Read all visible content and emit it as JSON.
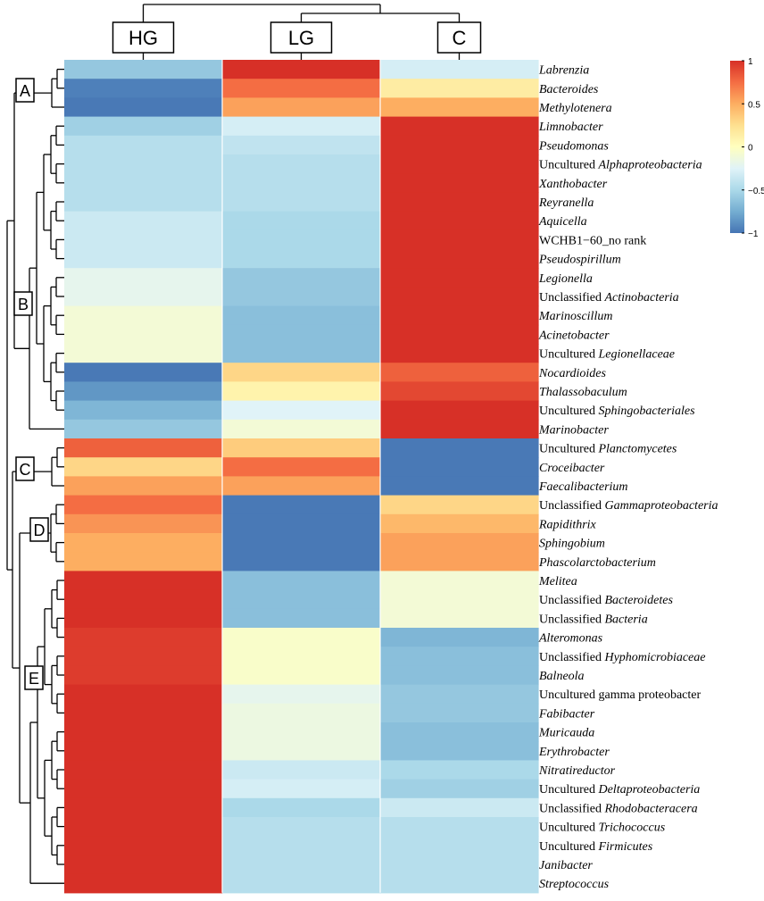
{
  "chart_data": {
    "type": "heatmap",
    "title": "",
    "columns": [
      "HG",
      "LG",
      "C"
    ],
    "color_scale": {
      "min": -1,
      "max": 1,
      "ticks": [
        1,
        0.5,
        0,
        -0.5,
        -1
      ],
      "tick_labels": [
        "1",
        "0.5",
        "0",
        "−0.5",
        "−1"
      ],
      "stops": [
        "#4575b4",
        "#74add1",
        "#abd9e9",
        "#e0f3f8",
        "#ffffbf",
        "#fee090",
        "#fdae61",
        "#f46d43",
        "#d73027"
      ]
    },
    "clusters": [
      {
        "label": "A",
        "rows": [
          "Labrenzia",
          "Bacteroides",
          "Methylotenera"
        ]
      },
      {
        "label": "B",
        "rows": [
          "Limnobacter",
          "Pseudomonas",
          "Uncultured Alphaproteobacteria",
          "Xanthobacter",
          "Reyranella",
          "Aquicella",
          "WCHB1-60_no rank",
          "Pseudospirillum",
          "Legionella",
          "Unclassified Actinobacteria",
          "Marinoscillum",
          "Acinetobacter",
          "Uncultured Legionellaceae",
          "Nocardioides",
          "Thalassobaculum",
          "Uncultured Sphingobacteriales",
          "Marinobacter"
        ]
      },
      {
        "label": "C",
        "rows": [
          "Uncultured Planctomycetes",
          "Croceibacter",
          "Faecalibacterium"
        ]
      },
      {
        "label": "D",
        "rows": [
          "Unclassified Gammaproteobacteria",
          "Rapidithrix",
          "Sphingobium",
          "Phascolarctobacterium"
        ]
      },
      {
        "label": "E",
        "rows": [
          "Melitea",
          "Unclassified Bacteroidetes",
          "Unclassified Bacteria",
          "Alteromonas",
          "Unclassified Hyphomicrobiaceae",
          "Balneola",
          "Uncultured gamma proteobacter",
          "Fabibacter",
          "Muricauda",
          "Erythrobacter",
          "Nitratireductor",
          "Uncultured Deltaproteobacteria",
          "Unclassified Rhodobacteracera",
          "Uncultured Trichococcus",
          "Uncultured Firmicutes",
          "Janibacter",
          "Streptococcus"
        ]
      }
    ],
    "rows": [
      {
        "plain": "",
        "italic": "Labrenzia",
        "values": [
          -0.6,
          1.0,
          -0.3
        ]
      },
      {
        "plain": "",
        "italic": "Bacteroides",
        "values": [
          -0.95,
          0.75,
          0.15
        ]
      },
      {
        "plain": "",
        "italic": "Methylotenera",
        "values": [
          -0.98,
          0.55,
          0.5
        ]
      },
      {
        "plain": "",
        "italic": "Limnobacter",
        "values": [
          -0.55,
          -0.3,
          1.0
        ]
      },
      {
        "plain": "",
        "italic": "Pseudomonas",
        "values": [
          -0.45,
          -0.4,
          1.0
        ]
      },
      {
        "plain": "Uncultured ",
        "italic": "Alphaproteobacteria",
        "values": [
          -0.45,
          -0.45,
          1.0
        ]
      },
      {
        "plain": "",
        "italic": "Xanthobacter",
        "values": [
          -0.45,
          -0.45,
          1.0
        ]
      },
      {
        "plain": "",
        "italic": "Reyranella",
        "values": [
          -0.45,
          -0.45,
          1.0
        ]
      },
      {
        "plain": "",
        "italic": "Aquicella",
        "values": [
          -0.35,
          -0.5,
          1.0
        ]
      },
      {
        "plain": "WCHB1−60_no rank",
        "italic": "",
        "values": [
          -0.35,
          -0.5,
          1.0
        ]
      },
      {
        "plain": "",
        "italic": "Pseudospirillum",
        "values": [
          -0.35,
          -0.5,
          1.0
        ]
      },
      {
        "plain": "",
        "italic": "Legionella",
        "values": [
          -0.2,
          -0.6,
          1.0
        ]
      },
      {
        "plain": "Unclassified ",
        "italic": "Actinobacteria",
        "values": [
          -0.2,
          -0.6,
          1.0
        ]
      },
      {
        "plain": "",
        "italic": "Marinoscillum",
        "values": [
          -0.1,
          -0.65,
          1.0
        ]
      },
      {
        "plain": "",
        "italic": "Acinetobacter",
        "values": [
          -0.1,
          -0.65,
          1.0
        ]
      },
      {
        "plain": "Uncultured ",
        "italic": "Legionellaceae",
        "values": [
          -0.1,
          -0.65,
          1.0
        ]
      },
      {
        "plain": "",
        "italic": "Nocardioides",
        "values": [
          -0.98,
          0.3,
          0.8
        ]
      },
      {
        "plain": "",
        "italic": "Thalassobaculum",
        "values": [
          -0.85,
          0.1,
          0.9
        ]
      },
      {
        "plain": "Uncultured ",
        "italic": "Sphingobacteriales",
        "values": [
          -0.7,
          -0.25,
          1.0
        ]
      },
      {
        "plain": "",
        "italic": "Marinobacter",
        "values": [
          -0.6,
          -0.1,
          1.0
        ]
      },
      {
        "plain": "Uncultured ",
        "italic": "Planctomycetes",
        "values": [
          0.8,
          0.35,
          -0.98
        ]
      },
      {
        "plain": "",
        "italic": "Croceibacter",
        "values": [
          0.3,
          0.75,
          -0.98
        ]
      },
      {
        "plain": "",
        "italic": "Faecalibacterium",
        "values": [
          0.55,
          0.55,
          -0.98
        ]
      },
      {
        "plain": "Unclassified ",
        "italic": "Gammaproteobacteria",
        "values": [
          0.75,
          -0.98,
          0.3
        ]
      },
      {
        "plain": "",
        "italic": "Rapidithrix",
        "values": [
          0.6,
          -0.98,
          0.45
        ]
      },
      {
        "plain": "",
        "italic": "Sphingobium",
        "values": [
          0.5,
          -0.98,
          0.55
        ]
      },
      {
        "plain": "",
        "italic": "Phascolarctobacterium",
        "values": [
          0.5,
          -0.98,
          0.55
        ]
      },
      {
        "plain": "",
        "italic": "Melitea",
        "values": [
          1.0,
          -0.65,
          -0.1
        ]
      },
      {
        "plain": "Unclassified ",
        "italic": "Bacteroidetes",
        "values": [
          1.0,
          -0.65,
          -0.1
        ]
      },
      {
        "plain": "Unclassified ",
        "italic": "Bacteria",
        "values": [
          1.0,
          -0.65,
          -0.1
        ]
      },
      {
        "plain": "",
        "italic": "Alteromonas",
        "values": [
          0.95,
          -0.05,
          -0.7
        ]
      },
      {
        "plain": "Unclassified ",
        "italic": "Hyphomicrobiaceae",
        "values": [
          0.95,
          -0.05,
          -0.65
        ]
      },
      {
        "plain": "",
        "italic": "Balneola",
        "values": [
          0.95,
          -0.05,
          -0.65
        ]
      },
      {
        "plain": "Uncultured gamma proteobacter",
        "italic": "",
        "values": [
          1.0,
          -0.2,
          -0.6
        ]
      },
      {
        "plain": "",
        "italic": "Fabibacter",
        "values": [
          1.0,
          -0.15,
          -0.6
        ]
      },
      {
        "plain": "",
        "italic": "Muricauda",
        "values": [
          1.0,
          -0.15,
          -0.65
        ]
      },
      {
        "plain": "",
        "italic": "Erythrobacter",
        "values": [
          1.0,
          -0.15,
          -0.65
        ]
      },
      {
        "plain": "",
        "italic": "Nitratireductor",
        "values": [
          1.0,
          -0.35,
          -0.5
        ]
      },
      {
        "plain": "Uncultured ",
        "italic": "Deltaproteobacteria",
        "values": [
          1.0,
          -0.3,
          -0.55
        ]
      },
      {
        "plain": "Unclassified ",
        "italic": "Rhodobacteracera",
        "values": [
          1.0,
          -0.5,
          -0.35
        ]
      },
      {
        "plain": "Uncultured ",
        "italic": "Trichococcus",
        "values": [
          1.0,
          -0.45,
          -0.45
        ]
      },
      {
        "plain": "Uncultured ",
        "italic": "Firmicutes",
        "values": [
          1.0,
          -0.45,
          -0.45
        ]
      },
      {
        "plain": "",
        "italic": "Janibacter",
        "values": [
          1.0,
          -0.45,
          -0.45
        ]
      },
      {
        "plain": "",
        "italic": "Streptococcus",
        "values": [
          1.0,
          -0.45,
          -0.45
        ]
      }
    ]
  }
}
